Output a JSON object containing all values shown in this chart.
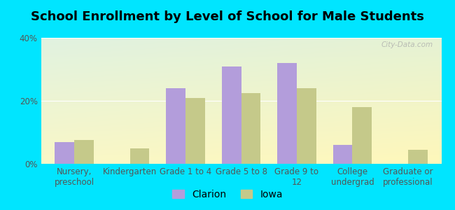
{
  "title": "School Enrollment by Level of School for Male Students",
  "categories": [
    "Nursery,\npreschool",
    "Kindergarten",
    "Grade 1 to 4",
    "Grade 5 to 8",
    "Grade 9 to\n12",
    "College\nundergrad",
    "Graduate or\nprofessional"
  ],
  "clarion": [
    7,
    0,
    24,
    31,
    32,
    6,
    0
  ],
  "iowa": [
    7.5,
    5,
    21,
    22.5,
    24,
    18,
    4.5
  ],
  "clarion_color": "#b39ddb",
  "iowa_color": "#c5c98a",
  "bg_color": "#00e5ff",
  "ylim": [
    0,
    40
  ],
  "yticks": [
    0,
    20,
    40
  ],
  "ytick_labels": [
    "0%",
    "20%",
    "40%"
  ],
  "legend_labels": [
    "Clarion",
    "Iowa"
  ],
  "bar_width": 0.35,
  "title_fontsize": 13,
  "tick_fontsize": 8.5,
  "legend_fontsize": 10,
  "watermark": "City-Data.com"
}
